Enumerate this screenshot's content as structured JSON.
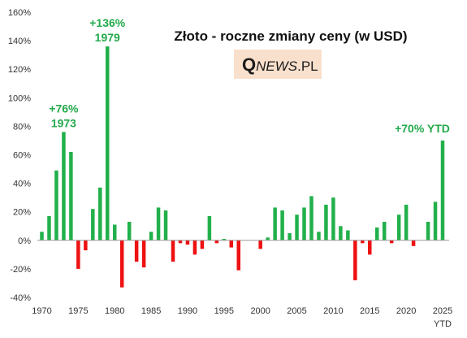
{
  "chart_data": {
    "type": "bar",
    "title": "Złoto - roczne zmiany ceny (w USD)",
    "logo": {
      "text_q": "Q",
      "text_news": "NEWS",
      "text_suffix": ".PL",
      "background": "#f9e0cc"
    },
    "x": [
      1970,
      1971,
      1972,
      1973,
      1974,
      1975,
      1976,
      1977,
      1978,
      1979,
      1980,
      1981,
      1982,
      1983,
      1984,
      1985,
      1986,
      1987,
      1988,
      1989,
      1990,
      1991,
      1992,
      1993,
      1994,
      1995,
      1996,
      1997,
      1998,
      1999,
      2000,
      2001,
      2002,
      2003,
      2004,
      2005,
      2006,
      2007,
      2008,
      2009,
      2010,
      2011,
      2012,
      2013,
      2014,
      2015,
      2016,
      2017,
      2018,
      2019,
      2020,
      2021,
      2022,
      2023,
      2024,
      2025
    ],
    "values": [
      6,
      17,
      49,
      76,
      62,
      -20,
      -7,
      22,
      37,
      136,
      11,
      -33,
      13,
      -15,
      -19,
      6,
      23,
      21,
      -15,
      -2,
      -3,
      -10,
      -6,
      17,
      -2,
      1,
      -5,
      -21,
      0,
      0,
      -6,
      2,
      23,
      21,
      5,
      18,
      23,
      31,
      6,
      25,
      30,
      10,
      7,
      -28,
      -2,
      -10,
      9,
      13,
      -2,
      18,
      25,
      -4,
      0,
      13,
      27,
      70
    ],
    "x_tick_labels": [
      "1970",
      "1975",
      "1980",
      "1985",
      "1990",
      "1995",
      "2000",
      "2005",
      "2010",
      "2015",
      "2020",
      "2025"
    ],
    "x_tick_sublabel": "YTD",
    "y_tick_labels": [
      "-40%",
      "-20%",
      "0%",
      "20%",
      "40%",
      "60%",
      "80%",
      "100%",
      "120%",
      "140%",
      "160%"
    ],
    "ylim": [
      -40,
      160
    ],
    "colors": {
      "positive": "#22b04b",
      "negative": "#ee1111",
      "annotation": "#22a94a",
      "axis": "#999999"
    },
    "annotations": [
      {
        "year": 1973,
        "line1": "+76%",
        "line2": "1973"
      },
      {
        "year": 1979,
        "line1": "+136%",
        "line2": "1979"
      },
      {
        "year": 2025,
        "line1": "+70% YTD",
        "line2": ""
      }
    ],
    "grid": false
  }
}
